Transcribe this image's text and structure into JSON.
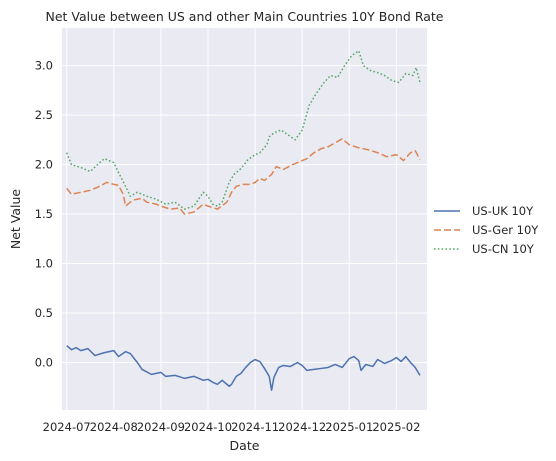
{
  "chart_data": {
    "type": "line",
    "title": "Net Value between US and other Main Countries 10Y Bond Rate",
    "xlabel": "Date",
    "ylabel": "Net Value",
    "x_ticks": [
      "2024-07",
      "2024-08",
      "2024-09",
      "2024-10",
      "2024-11",
      "2024-12",
      "2025-01",
      "2025-02"
    ],
    "y_ticks": [
      "0.0",
      "0.5",
      "1.0",
      "1.5",
      "2.0",
      "2.5",
      "3.0"
    ],
    "ylim": [
      -0.48,
      3.38
    ],
    "xlim_months": [
      -0.1,
      7.65
    ],
    "grid": true,
    "legend_position": "outside-right",
    "series": [
      {
        "name": "US-UK 10Y",
        "color": "#4c72b0",
        "dash": "solid",
        "points": [
          [
            0.0,
            0.17
          ],
          [
            0.1,
            0.13
          ],
          [
            0.2,
            0.15
          ],
          [
            0.3,
            0.12
          ],
          [
            0.45,
            0.14
          ],
          [
            0.6,
            0.07
          ],
          [
            0.8,
            0.1
          ],
          [
            1.0,
            0.12
          ],
          [
            1.1,
            0.06
          ],
          [
            1.25,
            0.11
          ],
          [
            1.35,
            0.09
          ],
          [
            1.5,
            0.0
          ],
          [
            1.6,
            -0.07
          ],
          [
            1.8,
            -0.12
          ],
          [
            2.0,
            -0.1
          ],
          [
            2.1,
            -0.14
          ],
          [
            2.3,
            -0.13
          ],
          [
            2.5,
            -0.16
          ],
          [
            2.7,
            -0.14
          ],
          [
            2.9,
            -0.18
          ],
          [
            3.0,
            -0.17
          ],
          [
            3.1,
            -0.2
          ],
          [
            3.2,
            -0.22
          ],
          [
            3.3,
            -0.18
          ],
          [
            3.45,
            -0.24
          ],
          [
            3.5,
            -0.22
          ],
          [
            3.6,
            -0.14
          ],
          [
            3.7,
            -0.11
          ],
          [
            3.8,
            -0.05
          ],
          [
            3.9,
            0.0
          ],
          [
            4.0,
            0.03
          ],
          [
            4.1,
            0.01
          ],
          [
            4.2,
            -0.06
          ],
          [
            4.3,
            -0.14
          ],
          [
            4.35,
            -0.28
          ],
          [
            4.4,
            -0.15
          ],
          [
            4.5,
            -0.05
          ],
          [
            4.6,
            -0.03
          ],
          [
            4.75,
            -0.04
          ],
          [
            4.9,
            0.0
          ],
          [
            5.0,
            -0.03
          ],
          [
            5.1,
            -0.08
          ],
          [
            5.25,
            -0.07
          ],
          [
            5.4,
            -0.06
          ],
          [
            5.55,
            -0.05
          ],
          [
            5.7,
            -0.02
          ],
          [
            5.85,
            -0.05
          ],
          [
            6.0,
            0.04
          ],
          [
            6.1,
            0.06
          ],
          [
            6.2,
            0.02
          ],
          [
            6.25,
            -0.08
          ],
          [
            6.35,
            -0.02
          ],
          [
            6.5,
            -0.04
          ],
          [
            6.6,
            0.03
          ],
          [
            6.75,
            -0.01
          ],
          [
            6.9,
            0.02
          ],
          [
            7.0,
            0.05
          ],
          [
            7.1,
            0.01
          ],
          [
            7.2,
            0.06
          ],
          [
            7.3,
            0.0
          ],
          [
            7.4,
            -0.05
          ],
          [
            7.5,
            -0.13
          ]
        ]
      },
      {
        "name": "US-Ger 10Y",
        "color": "#dd8452",
        "dash": "dashed",
        "points": [
          [
            0.0,
            1.76
          ],
          [
            0.1,
            1.7
          ],
          [
            0.3,
            1.72
          ],
          [
            0.5,
            1.74
          ],
          [
            0.7,
            1.78
          ],
          [
            0.85,
            1.82
          ],
          [
            1.0,
            1.8
          ],
          [
            1.1,
            1.79
          ],
          [
            1.2,
            1.7
          ],
          [
            1.25,
            1.58
          ],
          [
            1.4,
            1.64
          ],
          [
            1.6,
            1.66
          ],
          [
            1.7,
            1.62
          ],
          [
            1.9,
            1.6
          ],
          [
            2.0,
            1.58
          ],
          [
            2.2,
            1.55
          ],
          [
            2.4,
            1.56
          ],
          [
            2.5,
            1.5
          ],
          [
            2.7,
            1.52
          ],
          [
            2.9,
            1.6
          ],
          [
            3.0,
            1.58
          ],
          [
            3.2,
            1.55
          ],
          [
            3.4,
            1.62
          ],
          [
            3.5,
            1.72
          ],
          [
            3.6,
            1.78
          ],
          [
            3.75,
            1.8
          ],
          [
            3.9,
            1.8
          ],
          [
            4.0,
            1.82
          ],
          [
            4.1,
            1.86
          ],
          [
            4.2,
            1.84
          ],
          [
            4.35,
            1.9
          ],
          [
            4.45,
            1.98
          ],
          [
            4.6,
            1.95
          ],
          [
            4.8,
            2.0
          ],
          [
            5.0,
            2.04
          ],
          [
            5.1,
            2.06
          ],
          [
            5.25,
            2.12
          ],
          [
            5.4,
            2.16
          ],
          [
            5.55,
            2.18
          ],
          [
            5.7,
            2.22
          ],
          [
            5.85,
            2.26
          ],
          [
            6.0,
            2.2
          ],
          [
            6.2,
            2.17
          ],
          [
            6.4,
            2.15
          ],
          [
            6.6,
            2.12
          ],
          [
            6.8,
            2.08
          ],
          [
            7.0,
            2.1
          ],
          [
            7.15,
            2.04
          ],
          [
            7.3,
            2.12
          ],
          [
            7.4,
            2.14
          ],
          [
            7.5,
            2.05
          ]
        ]
      },
      {
        "name": "US-CN 10Y",
        "color": "#55a868",
        "dash": "dotted",
        "points": [
          [
            0.0,
            2.12
          ],
          [
            0.1,
            2.0
          ],
          [
            0.3,
            1.97
          ],
          [
            0.5,
            1.93
          ],
          [
            0.7,
            2.02
          ],
          [
            0.8,
            2.06
          ],
          [
            1.0,
            2.02
          ],
          [
            1.1,
            1.92
          ],
          [
            1.25,
            1.78
          ],
          [
            1.35,
            1.68
          ],
          [
            1.5,
            1.72
          ],
          [
            1.7,
            1.68
          ],
          [
            1.9,
            1.65
          ],
          [
            2.1,
            1.6
          ],
          [
            2.3,
            1.62
          ],
          [
            2.5,
            1.55
          ],
          [
            2.7,
            1.58
          ],
          [
            2.9,
            1.72
          ],
          [
            3.0,
            1.68
          ],
          [
            3.1,
            1.6
          ],
          [
            3.2,
            1.58
          ],
          [
            3.3,
            1.62
          ],
          [
            3.45,
            1.82
          ],
          [
            3.55,
            1.9
          ],
          [
            3.7,
            1.96
          ],
          [
            3.85,
            2.05
          ],
          [
            4.0,
            2.1
          ],
          [
            4.1,
            2.12
          ],
          [
            4.25,
            2.2
          ],
          [
            4.3,
            2.28
          ],
          [
            4.4,
            2.32
          ],
          [
            4.55,
            2.35
          ],
          [
            4.7,
            2.3
          ],
          [
            4.85,
            2.25
          ],
          [
            5.0,
            2.35
          ],
          [
            5.15,
            2.6
          ],
          [
            5.3,
            2.72
          ],
          [
            5.45,
            2.82
          ],
          [
            5.6,
            2.9
          ],
          [
            5.75,
            2.88
          ],
          [
            5.9,
            3.0
          ],
          [
            6.05,
            3.1
          ],
          [
            6.2,
            3.15
          ],
          [
            6.3,
            3.0
          ],
          [
            6.45,
            2.95
          ],
          [
            6.6,
            2.93
          ],
          [
            6.75,
            2.9
          ],
          [
            6.9,
            2.85
          ],
          [
            7.05,
            2.83
          ],
          [
            7.2,
            2.92
          ],
          [
            7.35,
            2.9
          ],
          [
            7.42,
            2.98
          ],
          [
            7.5,
            2.83
          ]
        ]
      }
    ]
  }
}
